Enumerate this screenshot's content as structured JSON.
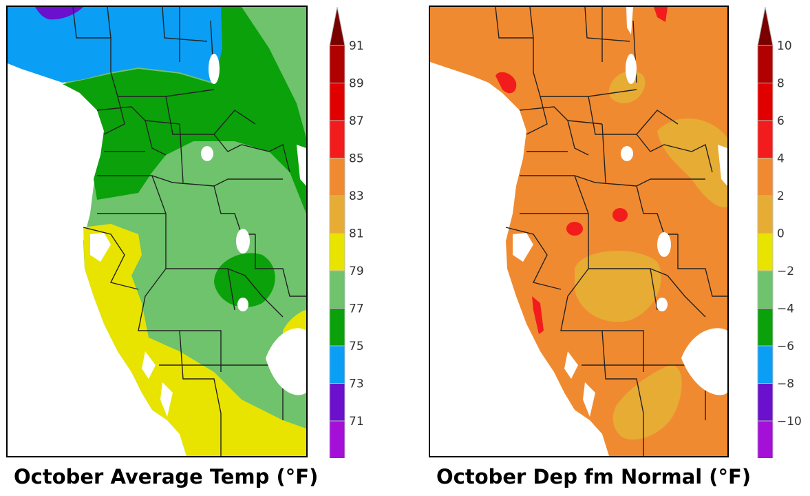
{
  "panels": [
    {
      "caption": "October Average Temp (°F)",
      "colorbar_labels": [
        "91",
        "89",
        "87",
        "85",
        "83",
        "81",
        "79",
        "77",
        "75",
        "73",
        "71"
      ],
      "colors": {
        "extreme_top": "#7a0000",
        "bands": [
          "#b00000",
          "#e00000",
          "#f21c1c",
          "#f08a30",
          "#e6ac34",
          "#e8e400",
          "#6ec36c",
          "#0aa10a",
          "#0a9ef4",
          "#6b10cc",
          "#a410d8"
        ],
        "extreme_bottom": "#ff40ff"
      }
    },
    {
      "caption": "October Dep fm Normal (°F)",
      "colorbar_labels": [
        "10",
        "8",
        "6",
        "4",
        "2",
        "0",
        "−2",
        "−4",
        "−6",
        "−8",
        "−10"
      ],
      "colors": {
        "extreme_top": "#7a0000",
        "bands": [
          "#b00000",
          "#e00000",
          "#f21c1c",
          "#f08a30",
          "#e6ac34",
          "#e8e400",
          "#6ec36c",
          "#0aa10a",
          "#0a9ef4",
          "#6b10cc",
          "#a410d8"
        ],
        "extreme_bottom": "#ff40ff"
      }
    }
  ]
}
